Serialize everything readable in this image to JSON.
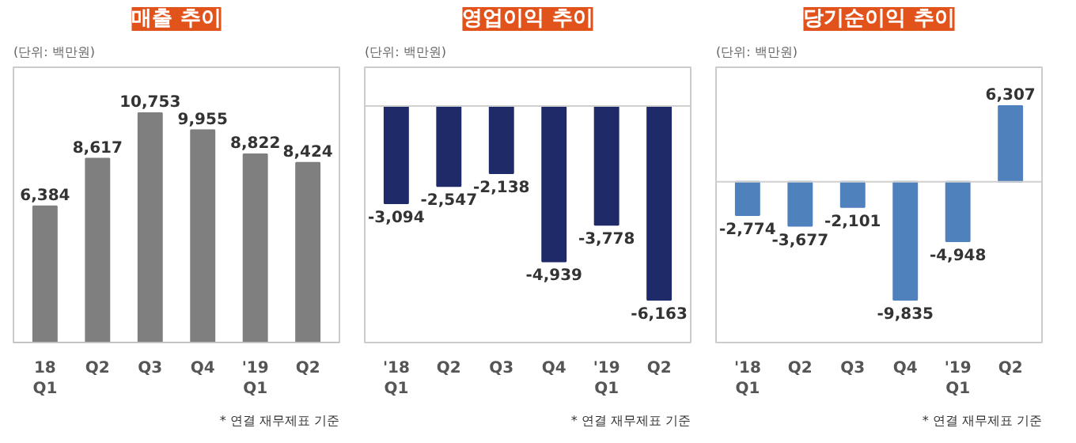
{
  "chart_data": [
    {
      "type": "bar",
      "title": "매출 추이",
      "annotations": [
        "(단위: 백만원)",
        "* 연결 재무제표 기준"
      ],
      "categories": [
        "18\nQ1",
        "Q2",
        "Q3",
        "Q4",
        "'19\nQ1",
        "Q2"
      ],
      "series": [
        {
          "color": "#7f7f7f",
          "values": [
            6384,
            8617,
            10753,
            9955,
            8822,
            8424
          ],
          "value_labels": [
            "6,384",
            "8,617",
            "10,753",
            "9,955",
            "8,822",
            "8,424"
          ]
        }
      ],
      "tick_labels": "x",
      "grid": false
    },
    {
      "type": "bar",
      "title": "영업이익 추이",
      "annotations": [
        "(단위: 백만원)",
        "* 연결 재무제표 기준"
      ],
      "categories": [
        "'18\nQ1",
        "Q2",
        "Q3",
        "Q4",
        "'19\nQ1",
        "Q2"
      ],
      "series": [
        {
          "color": "#1f2a68",
          "values": [
            -3094,
            -2547,
            -2138,
            -4939,
            -3778,
            -6163
          ],
          "value_labels": [
            "-3,094",
            "-2,547",
            "-2,138",
            "-4,939",
            "-3,778",
            "-6,163"
          ]
        }
      ],
      "tick_labels": "x",
      "grid": false
    },
    {
      "type": "bar",
      "title": "당기순이익 추이",
      "annotations": [
        "(단위: 백만원)",
        "* 연결 재무제표 기준"
      ],
      "categories": [
        "'18\nQ1",
        "Q2",
        "Q3",
        "Q4",
        "'19\nQ1",
        "Q2"
      ],
      "series": [
        {
          "color": "#4f81bd",
          "values": [
            -2774,
            -3677,
            -2101,
            -9835,
            -4948,
            6307
          ],
          "value_labels": [
            "-2,774",
            "-3,677",
            "-2,101",
            "-9,835",
            "-4,948",
            "6,307"
          ]
        }
      ],
      "tick_labels": "x",
      "grid": false
    }
  ]
}
